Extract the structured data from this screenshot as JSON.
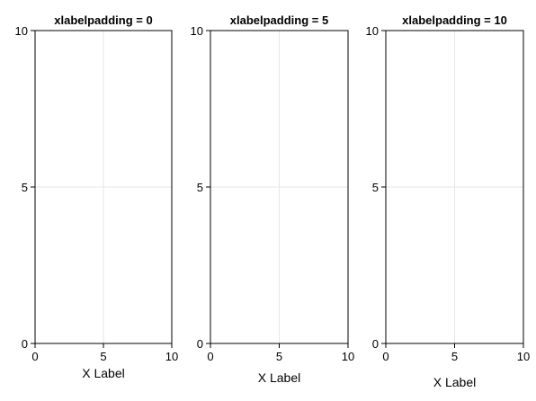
{
  "chart_data": [
    {
      "type": "scatter",
      "title": "xlabelpadding = 0",
      "xlabel": "X Label",
      "ylabel": "",
      "xlim": [
        0,
        10
      ],
      "ylim": [
        0,
        10
      ],
      "xticks": [
        "0",
        "5",
        "10"
      ],
      "yticks": [
        "0",
        "5",
        "10"
      ],
      "grid": true,
      "xlabelpadding": 0,
      "series": []
    },
    {
      "type": "scatter",
      "title": "xlabelpadding = 5",
      "xlabel": "X Label",
      "ylabel": "",
      "xlim": [
        0,
        10
      ],
      "ylim": [
        0,
        10
      ],
      "xticks": [
        "0",
        "5",
        "10"
      ],
      "yticks": [
        "0",
        "5",
        "10"
      ],
      "grid": true,
      "xlabelpadding": 5,
      "series": []
    },
    {
      "type": "scatter",
      "title": "xlabelpadding = 10",
      "xlabel": "X Label",
      "ylabel": "",
      "xlim": [
        0,
        10
      ],
      "ylim": [
        0,
        10
      ],
      "xticks": [
        "0",
        "5",
        "10"
      ],
      "yticks": [
        "0",
        "5",
        "10"
      ],
      "grid": true,
      "xlabelpadding": 10,
      "series": []
    }
  ]
}
